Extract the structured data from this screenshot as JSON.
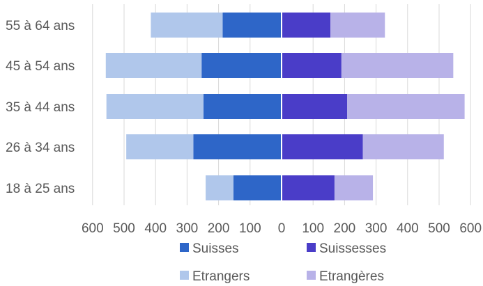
{
  "chart_data": {
    "type": "bar",
    "orientation": "horizontal-stacked-pyramid",
    "categories": [
      "18 à 25 ans",
      "26 à 34 ans",
      "35 à 44 ans",
      "45 à 54 ans",
      "55 à 64 ans"
    ],
    "series": [
      {
        "name": "Suisses",
        "side": "left",
        "values": [
          153,
          280,
          248,
          254,
          187
        ],
        "color": "#2E66C8"
      },
      {
        "name": "Etrangers",
        "side": "left",
        "values": [
          88,
          213,
          308,
          304,
          228
        ],
        "color": "#B0C7EB"
      },
      {
        "name": "Suissesses",
        "side": "right",
        "values": [
          168,
          258,
          208,
          190,
          155
        ],
        "color": "#4A3DC8"
      },
      {
        "name": "Etrangères",
        "side": "right",
        "values": [
          122,
          257,
          373,
          355,
          173
        ],
        "color": "#B8B2E8"
      }
    ],
    "xlim": [
      -600,
      600
    ],
    "x_ticks": [
      "600",
      "500",
      "400",
      "300",
      "200",
      "100",
      "0",
      "100",
      "200",
      "300",
      "400",
      "500",
      "600"
    ],
    "grid": "vertical",
    "legend": {
      "position": "bottom",
      "items": [
        "Suisses",
        "Suissesses",
        "Etrangers",
        "Etrangères"
      ]
    }
  }
}
